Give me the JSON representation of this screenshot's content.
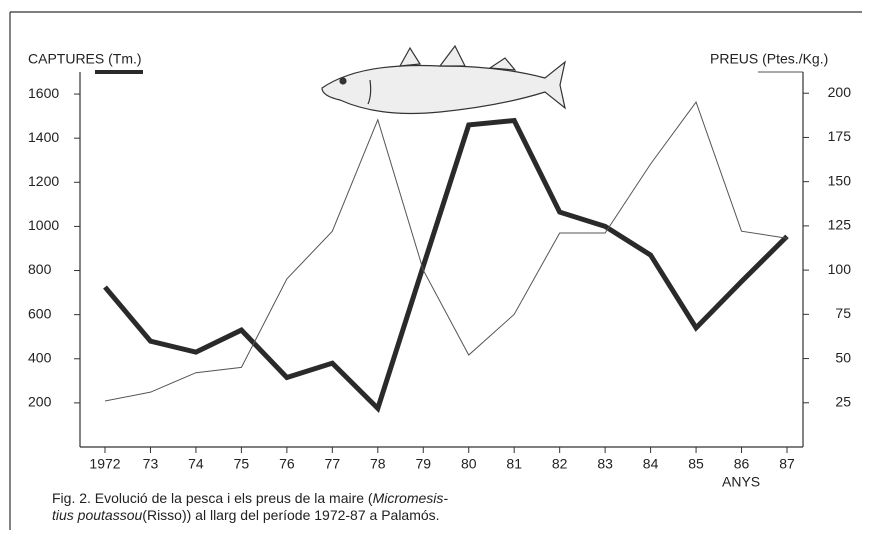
{
  "chart_data": {
    "type": "line",
    "y_label": "CAPTURES (Tm.)",
    "y2_label": "PREUS (Ptes./Kg.)",
    "x_label": "ANYS",
    "categories": [
      "1972",
      "73",
      "74",
      "75",
      "76",
      "77",
      "78",
      "79",
      "80",
      "81",
      "82",
      "83",
      "84",
      "85",
      "86",
      "87"
    ],
    "series": [
      {
        "name": "CAPTURES (Tm.)",
        "color": "#2a2a2a",
        "values": [
          725,
          480,
          430,
          530,
          315,
          380,
          175,
          820,
          1460,
          1480,
          1065,
          1000,
          870,
          540,
          750,
          955
        ]
      },
      {
        "name": "PREUS (Ptes./Kg.)",
        "color": "#555555",
        "axis": "y2",
        "values": [
          26,
          31,
          42,
          45,
          95,
          122,
          185,
          100,
          52,
          75,
          121,
          121,
          160,
          195,
          122,
          118
        ]
      }
    ],
    "ylim": [
      0,
      1700
    ],
    "yticks": [
      200,
      400,
      600,
      800,
      1000,
      1200,
      1400,
      1600
    ],
    "y2lim": [
      0,
      212
    ],
    "y2ticks": [
      25,
      50,
      75,
      100,
      125,
      150,
      175,
      200
    ],
    "caption": [
      [
        "Fig. 2. Evolució de la pesca i els preus de la maire (",
        "Micromesis-"
      ],
      [
        "tius poutassou",
        "(Risso)) al llarg del període 1972-87 a Palamós."
      ]
    ]
  }
}
